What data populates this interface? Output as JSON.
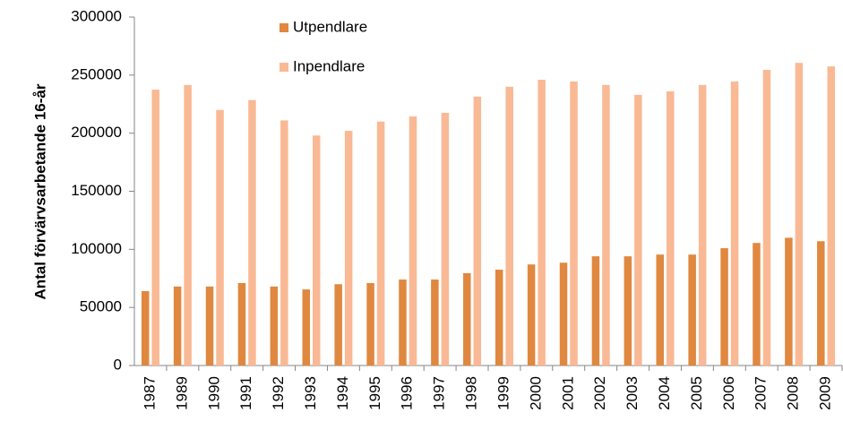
{
  "chart_data": {
    "type": "bar",
    "y_label": "Antal förvärvsarbetande  16-år",
    "categories": [
      "1987",
      "1989",
      "1990",
      "1991",
      "1992",
      "1993",
      "1994",
      "1995",
      "1996",
      "1997",
      "1998",
      "1999",
      "2000",
      "2001",
      "2002",
      "2003",
      "2004",
      "2005",
      "2006",
      "2007",
      "2008",
      "2009"
    ],
    "series": [
      {
        "name": "Utpendlare",
        "color": "#e0883f",
        "values": [
          64000,
          68000,
          68000,
          71000,
          68000,
          65500,
          70000,
          71000,
          74000,
          74000,
          79500,
          82500,
          87000,
          88500,
          94000,
          94000,
          95500,
          95500,
          101000,
          105500,
          110000,
          107000
        ]
      },
      {
        "name": "Inpendlare",
        "color": "#f9b994",
        "values": [
          237500,
          241500,
          220000,
          228500,
          211000,
          198000,
          202000,
          210000,
          214500,
          217500,
          231500,
          240000,
          246000,
          244500,
          241500,
          233000,
          236000,
          241500,
          244500,
          254500,
          260500,
          257500
        ]
      }
    ],
    "ylim": [
      0,
      300000
    ],
    "yticks": [
      0,
      50000,
      100000,
      150000,
      200000,
      250000,
      300000
    ],
    "grid": false,
    "legend": "top-left"
  }
}
